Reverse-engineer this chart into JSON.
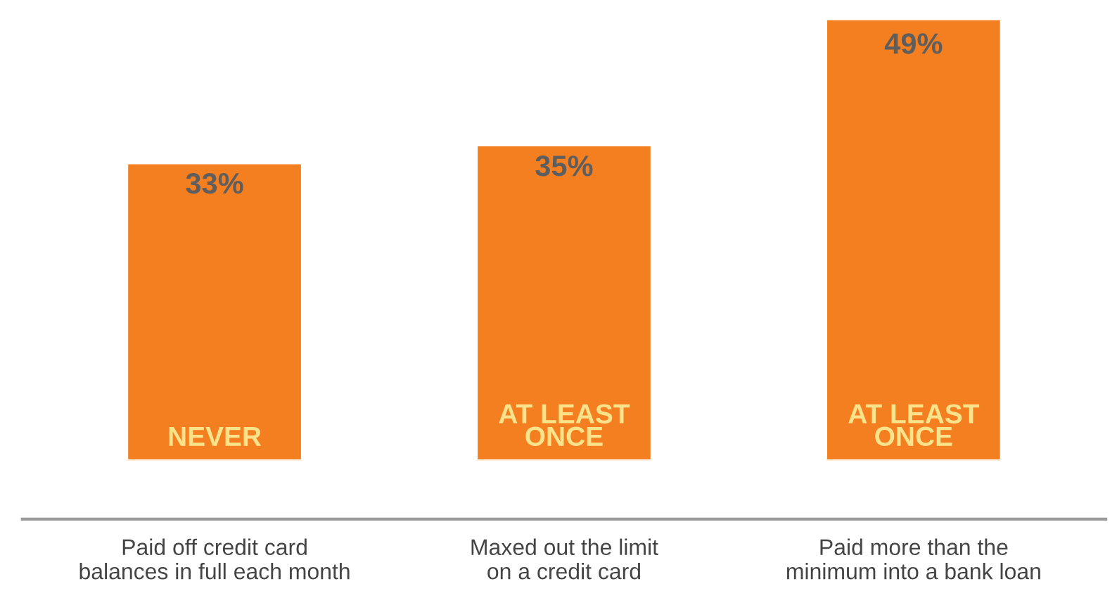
{
  "chart_data": {
    "type": "bar",
    "categories": [
      "Paid off credit card\nbalances in full each month",
      "Maxed out the limit\non a credit card",
      "Paid more than the\nminimum into a bank loan"
    ],
    "values": [
      33,
      35,
      49
    ],
    "color": "#f47f20",
    "value_labels": [
      "33%",
      "35%",
      "49%"
    ],
    "annotations": [
      "NEVER",
      "AT LEAST\nONCE",
      "AT LEAST\nONCE"
    ],
    "tick_labels": "x",
    "grid": false,
    "legend": false
  }
}
